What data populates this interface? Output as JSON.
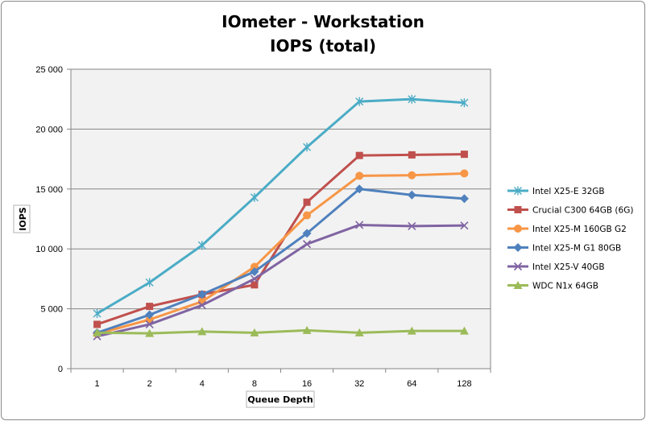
{
  "chart_data": {
    "type": "line",
    "title": "IOmeter - Workstation",
    "subtitle": "IOPS (total)",
    "xlabel": "Queue Depth",
    "ylabel": "IOPS",
    "categories": [
      "1",
      "2",
      "4",
      "8",
      "16",
      "32",
      "64",
      "128"
    ],
    "ylim": [
      0,
      25000
    ],
    "yticks": [
      0,
      5000,
      10000,
      15000,
      20000,
      25000
    ],
    "ytick_labels": [
      "0",
      "5 000",
      "10 000",
      "15 000",
      "20 000",
      "25 000"
    ],
    "grid": true,
    "legend_position": "right",
    "series": [
      {
        "name": "Intel X25-E 32GB",
        "color": "#4bacc6",
        "marker": "star",
        "values": [
          4600,
          7200,
          10300,
          14300,
          18500,
          22300,
          22500,
          22200
        ]
      },
      {
        "name": "Crucial C300 64GB (6G)",
        "color": "#c0504d",
        "marker": "square",
        "values": [
          3700,
          5200,
          6200,
          7000,
          13900,
          17800,
          17850,
          17900
        ]
      },
      {
        "name": "Intel X25-M 160GB G2",
        "color": "#f79646",
        "marker": "circle",
        "values": [
          2900,
          4100,
          5600,
          8500,
          12800,
          16100,
          16150,
          16300
        ]
      },
      {
        "name": "Intel X25-M G1 80GB",
        "color": "#4f81bd",
        "marker": "diamond",
        "values": [
          3000,
          4500,
          6200,
          8100,
          11300,
          15000,
          14500,
          14200
        ]
      },
      {
        "name": "Intel X25-V 40GB",
        "color": "#8064a2",
        "marker": "x",
        "values": [
          2700,
          3700,
          5300,
          7500,
          10400,
          12000,
          11900,
          11950
        ]
      },
      {
        "name": "WDC N1x 64GB",
        "color": "#9bbb59",
        "marker": "triangle",
        "values": [
          3000,
          2950,
          3100,
          3000,
          3200,
          3000,
          3150,
          3150
        ]
      }
    ]
  }
}
